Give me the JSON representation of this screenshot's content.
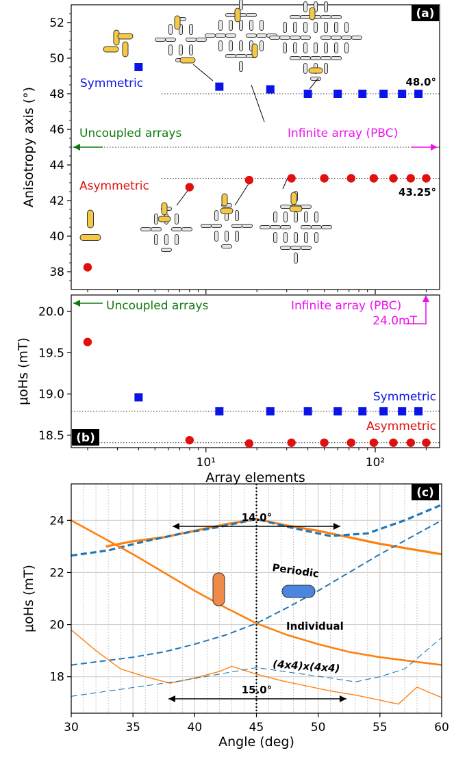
{
  "chart_data": [
    {
      "panel": "(a)",
      "type": "scatter",
      "x_scale": "log",
      "xlim": [
        1.6,
        240
      ],
      "ylim": [
        37,
        53
      ],
      "ylabel": "Anisotropy axis (°)",
      "yticks": [
        38,
        40,
        42,
        44,
        46,
        48,
        50,
        52
      ],
      "series": [
        {
          "name": "Symmetric",
          "marker": "square",
          "color": "#0a14e6",
          "x": [
            4,
            12,
            24,
            40,
            60,
            84,
            112,
            144,
            180
          ],
          "y": [
            49.5,
            48.4,
            48.25,
            48.0,
            48.0,
            48.0,
            48.0,
            48.0,
            48.0
          ]
        },
        {
          "name": "Asymmetric",
          "marker": "circle",
          "color": "#e01010",
          "x": [
            2,
            8,
            18,
            32,
            50,
            72,
            98,
            128,
            162,
            200
          ],
          "y": [
            38.25,
            42.75,
            43.15,
            43.25,
            43.25,
            43.25,
            43.25,
            43.25,
            43.25,
            43.25
          ]
        }
      ],
      "reference_lines": [
        {
          "y": 48.0,
          "label": "48.0°"
        },
        {
          "y": 43.25,
          "label": "43.25°"
        },
        {
          "y": 45.0
        }
      ],
      "annotations": {
        "panel_tag": "(a)",
        "symmetric": "Symmetric",
        "asymmetric": "Asymmetric",
        "uncoupled": "Uncoupled arrays",
        "infinite": "Infinite array (PBC)",
        "sym_value": "48.0°",
        "asym_value": "43.25°"
      }
    },
    {
      "panel": "(b)",
      "type": "scatter",
      "x_scale": "log",
      "xlim": [
        1.6,
        240
      ],
      "ylim": [
        18.35,
        20.2
      ],
      "xlabel": "Array elements",
      "ylabel": "μoHs (mT)",
      "yticks": [
        "18.5",
        "19.0",
        "19.5",
        "20.0"
      ],
      "xticks": [
        "10¹",
        "10²"
      ],
      "series": [
        {
          "name": "Symmetric",
          "marker": "square",
          "color": "#0a14e6",
          "x": [
            4,
            12,
            24,
            40,
            60,
            84,
            112,
            144,
            180
          ],
          "y": [
            18.96,
            18.79,
            18.79,
            18.79,
            18.79,
            18.79,
            18.79,
            18.79,
            18.79
          ]
        },
        {
          "name": "Asymmetric",
          "marker": "circle",
          "color": "#e01010",
          "x": [
            2,
            8,
            18,
            32,
            50,
            72,
            98,
            128,
            162,
            200
          ],
          "y": [
            19.63,
            18.44,
            18.4,
            18.41,
            18.41,
            18.41,
            18.41,
            18.41,
            18.41,
            18.41
          ]
        }
      ],
      "reference_lines": [
        {
          "y": 18.79
        },
        {
          "y": 18.41
        }
      ],
      "annotations": {
        "panel_tag": "(b)",
        "symmetric": "Symmetric",
        "asymmetric": "Asymmetric",
        "uncoupled": "Uncoupled arrays",
        "infinite": "Infinite array (PBC)",
        "pbc_value": "24.0mT"
      }
    },
    {
      "panel": "(c)",
      "type": "line",
      "xlim": [
        30,
        60
      ],
      "ylim": [
        16.6,
        25.4
      ],
      "xlabel": "Angle (deg)",
      "ylabel": "μoHs (mT)",
      "xticks": [
        30,
        35,
        40,
        45,
        50,
        55,
        60
      ],
      "yticks": [
        18,
        20,
        22,
        24
      ],
      "grid": true,
      "series": [
        {
          "name": "Periodic",
          "color": "#ff7f0e",
          "style": "solid",
          "x": [
            32.8,
            35,
            37.5,
            40,
            42.5,
            45,
            47.5,
            50,
            52.5,
            55,
            57.5,
            60
          ],
          "y": [
            23.0,
            23.2,
            23.35,
            23.6,
            23.85,
            24.05,
            23.8,
            23.6,
            23.35,
            23.1,
            22.9,
            22.7
          ]
        },
        {
          "name": "Periodic",
          "color": "#1f77b4",
          "style": "dashed",
          "x": [
            30,
            33,
            36,
            39,
            42,
            45,
            48,
            51,
            54,
            57,
            60
          ],
          "y": [
            22.65,
            22.85,
            23.2,
            23.5,
            23.75,
            24.05,
            23.7,
            23.4,
            23.5,
            24.0,
            24.6
          ]
        },
        {
          "name": "Individual",
          "color": "#ff7f0e",
          "style": "solid",
          "x": [
            30,
            32.5,
            35,
            37.5,
            40,
            42.5,
            45,
            47.5,
            50,
            52.5,
            55,
            57.5,
            60
          ],
          "y": [
            24.0,
            23.35,
            22.7,
            22.0,
            21.3,
            20.65,
            20.05,
            19.6,
            19.25,
            18.95,
            18.75,
            18.6,
            18.45
          ]
        },
        {
          "name": "Individual",
          "color": "#1f77b4",
          "style": "dashed",
          "x": [
            30,
            32.5,
            35,
            37.5,
            40,
            42.5,
            45,
            47.5,
            50,
            52.5,
            55,
            57.5,
            60
          ],
          "y": [
            18.45,
            18.6,
            18.75,
            18.95,
            19.25,
            19.6,
            20.05,
            20.65,
            21.3,
            22.0,
            22.7,
            23.35,
            24.0
          ]
        },
        {
          "name": "(4x4)x(4x4)",
          "color": "#ff7f0e",
          "style": "solid",
          "x": [
            30,
            32,
            34,
            36,
            38,
            40,
            42,
            43,
            45,
            47,
            49,
            51,
            53,
            55,
            56.5,
            58,
            60
          ],
          "y": [
            19.8,
            19.0,
            18.3,
            18.0,
            17.75,
            17.95,
            18.2,
            18.4,
            18.1,
            17.85,
            17.65,
            17.45,
            17.3,
            17.1,
            16.95,
            17.6,
            17.2
          ]
        },
        {
          "name": "(4x4)x(4x4)",
          "color": "#1f77b4",
          "style": "dashed",
          "x": [
            30,
            33,
            36,
            39,
            42,
            45,
            48,
            51,
            53,
            55,
            57,
            60
          ],
          "y": [
            17.25,
            17.45,
            17.65,
            17.85,
            18.1,
            18.35,
            18.15,
            17.95,
            17.8,
            18.0,
            18.3,
            19.5
          ]
        }
      ],
      "annotations": {
        "panel_tag": "(c)",
        "periodic": "Periodic",
        "individual": "Individual",
        "sub": "(4x4)x(4x4)",
        "top_arrow": "14.0°",
        "bottom_arrow": "15.0°"
      }
    }
  ]
}
